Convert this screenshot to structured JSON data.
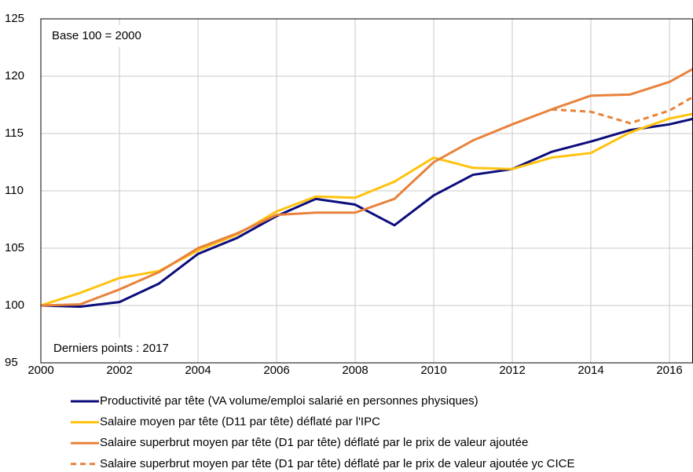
{
  "chart_data": {
    "type": "line",
    "annotations": [
      "Base 100 = 2000",
      "Derniers points : 2017"
    ],
    "x": [
      2000,
      2001,
      2002,
      2003,
      2004,
      2005,
      2006,
      2007,
      2008,
      2009,
      2010,
      2011,
      2012,
      2013,
      2014,
      2015,
      2016,
      2017
    ],
    "series": [
      {
        "name": "Productivité par tête (VA volume/emploi salarié en personnes physiques)",
        "color": "#0c0c7c",
        "dashed": false,
        "values": [
          100,
          99.9,
          100.3,
          101.9,
          104.5,
          105.9,
          107.8,
          109.3,
          108.8,
          107.0,
          109.6,
          111.4,
          111.9,
          113.4,
          114.3,
          115.3,
          115.8,
          116.6
        ]
      },
      {
        "name": "Salaire moyen par tête (D11 par tête) déflaté par l'IPC",
        "color": "#ffc20e",
        "dashed": false,
        "values": [
          100,
          101.1,
          102.4,
          103.0,
          104.8,
          106.2,
          108.2,
          109.5,
          109.4,
          110.8,
          112.9,
          112.0,
          111.9,
          112.9,
          113.3,
          115.1,
          116.3,
          117.0
        ]
      },
      {
        "name": "Salaire superbrut moyen par tête (D1 par tête) déflaté par le prix de valeur ajoutée",
        "color": "#e8823c",
        "dashed": false,
        "values": [
          100,
          100.1,
          101.4,
          102.9,
          105.0,
          106.3,
          107.9,
          108.1,
          108.1,
          109.3,
          112.5,
          114.4,
          115.8,
          117.1,
          118.3,
          118.4,
          119.5,
          121.4
        ]
      },
      {
        "name": "Salaire superbrut moyen par tête (D1 par tête) déflaté par le prix de valeur ajoutée yc CICE",
        "color": "#e8823c",
        "dashed": true,
        "values": [
          null,
          null,
          null,
          null,
          null,
          null,
          null,
          null,
          null,
          null,
          null,
          null,
          null,
          117.1,
          116.9,
          115.9,
          117.0,
          119.0
        ]
      }
    ],
    "xlim": [
      2000,
      2016.6
    ],
    "xticks": [
      2000,
      2002,
      2004,
      2006,
      2008,
      2010,
      2012,
      2014,
      2016
    ],
    "ylim": [
      95,
      125
    ],
    "yticks": [
      95,
      100,
      105,
      110,
      115,
      120,
      125
    ],
    "grid": true
  }
}
